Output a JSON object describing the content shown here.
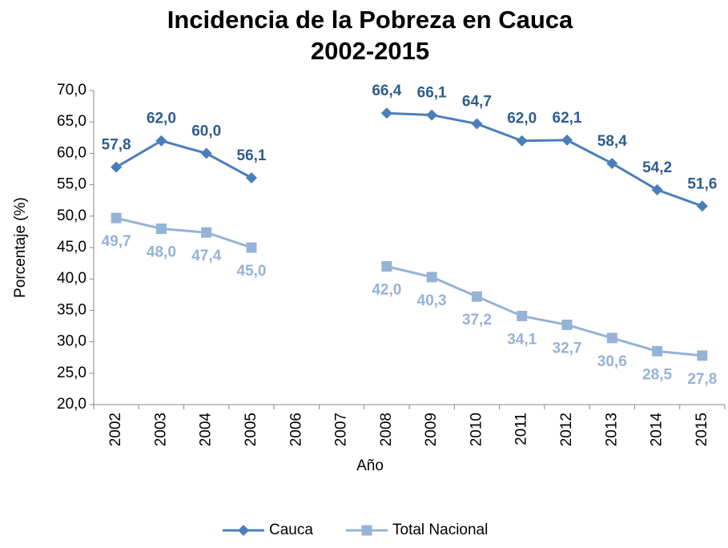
{
  "chart_data": {
    "type": "line",
    "title": "Incidencia de la Pobreza en Cauca",
    "subtitle": "2002-2015",
    "x_label": "Año",
    "y_label": "Porcentaje (%)",
    "categories": [
      "2002",
      "2003",
      "2004",
      "2005",
      "2006",
      "2007",
      "2008",
      "2009",
      "2010",
      "2011",
      "2012",
      "2013",
      "2014",
      "2015"
    ],
    "series": [
      {
        "name": "Cauca",
        "color": "#4a7ebb",
        "label_color": "#2f5d8f",
        "marker": "diamond",
        "values": [
          57.8,
          62.0,
          60.0,
          56.1,
          null,
          null,
          66.4,
          66.1,
          64.7,
          62.0,
          62.1,
          58.4,
          54.2,
          51.6
        ],
        "value_labels": [
          "57,8",
          "62,0",
          "60,0",
          "56,1",
          null,
          null,
          "66,4",
          "66,1",
          "64,7",
          "62,0",
          "62,1",
          "58,4",
          "54,2",
          "51,6"
        ]
      },
      {
        "name": "Total Nacional",
        "color": "#95b3d7",
        "label_color": "#95b3d7",
        "marker": "square",
        "values": [
          49.7,
          48.0,
          47.4,
          45.0,
          null,
          null,
          42.0,
          40.3,
          37.2,
          34.1,
          32.7,
          30.6,
          28.5,
          27.8
        ],
        "value_labels": [
          "49,7",
          "48,0",
          "47,4",
          "45,0",
          null,
          null,
          "42,0",
          "40,3",
          "37,2",
          "34,1",
          "32,7",
          "30,6",
          "28,5",
          "27,8"
        ]
      }
    ],
    "ylim": [
      20,
      70
    ],
    "yticks": [
      {
        "value": 20,
        "label": "20,0"
      },
      {
        "value": 25,
        "label": "25,0"
      },
      {
        "value": 30,
        "label": "30,0"
      },
      {
        "value": 35,
        "label": "35,0"
      },
      {
        "value": 40,
        "label": "40,0"
      },
      {
        "value": 45,
        "label": "45,0"
      },
      {
        "value": 50,
        "label": "50,0"
      },
      {
        "value": 55,
        "label": "55,0"
      },
      {
        "value": 60,
        "label": "60,0"
      },
      {
        "value": 65,
        "label": "65,0"
      },
      {
        "value": 70,
        "label": "70,0"
      }
    ],
    "grid": false,
    "legend": "bottom"
  }
}
